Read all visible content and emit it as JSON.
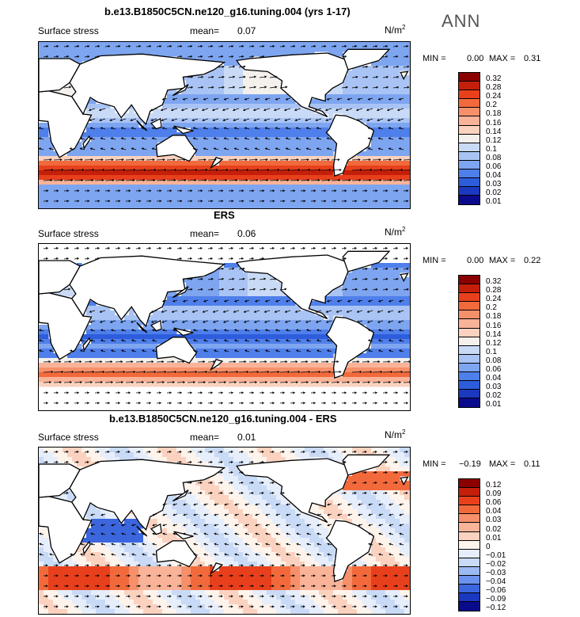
{
  "season": "ANN",
  "units": "N/m",
  "units_sup": "2",
  "panels": [
    {
      "title": "b.e13.B1850C5CN.ne120_g16.tuning.004 (yrs 1-17)",
      "field": "Surface stress",
      "mean_label": "mean=",
      "mean": "0.07",
      "min_label": "MIN =",
      "min": "0.00",
      "max_label": "MAX =",
      "max": "0.31",
      "levels": [
        "0.32",
        "0.28",
        "0.24",
        "0.2",
        "0.18",
        "0.16",
        "0.14",
        "0.12",
        "0.1",
        "0.08",
        "0.06",
        "0.04",
        "0.03",
        "0.02",
        "0.01"
      ]
    },
    {
      "title": "ERS",
      "field": "Surface stress",
      "mean_label": "mean=",
      "mean": "0.06",
      "min_label": "MIN =",
      "min": "0.00",
      "max_label": "MAX =",
      "max": "0.22",
      "levels": [
        "0.32",
        "0.28",
        "0.24",
        "0.2",
        "0.18",
        "0.16",
        "0.14",
        "0.12",
        "0.1",
        "0.08",
        "0.06",
        "0.04",
        "0.03",
        "0.02",
        "0.01"
      ]
    },
    {
      "title": "b.e13.B1850C5CN.ne120_g16.tuning.004 - ERS",
      "field": "Surface stress",
      "mean_label": "mean=",
      "mean": "0.01",
      "min_label": "MIN =",
      "min": "−0.19",
      "max_label": "MAX =",
      "max": "0.11",
      "levels": [
        "0.12",
        "0.09",
        "0.06",
        "0.04",
        "0.03",
        "0.02",
        "0.01",
        "0",
        "−0.01",
        "−0.02",
        "−0.03",
        "−0.04",
        "−0.06",
        "−0.09",
        "−0.12"
      ]
    }
  ],
  "colors": {
    "abs_scale": [
      "#8b0000",
      "#c41f0a",
      "#e8401c",
      "#f26a3c",
      "#f6906a",
      "#f9b398",
      "#fbd2bf",
      "#f4f0ec",
      "#c9daf6",
      "#a9c4f4",
      "#7ea5f0",
      "#4f7fea",
      "#2d5ddc",
      "#1b38c0",
      "#0a0a8c"
    ],
    "diff_scale": [
      "#8b0000",
      "#c41f0a",
      "#e8401c",
      "#f26a3c",
      "#f6906a",
      "#f9b398",
      "#fbd2bf",
      "#fff4ec",
      "#e6eefb",
      "#c9daf6",
      "#9bbaf2",
      "#6b92ec",
      "#3c66de",
      "#1b38c0",
      "#0a0a8c"
    ],
    "land": "#ffffff"
  }
}
